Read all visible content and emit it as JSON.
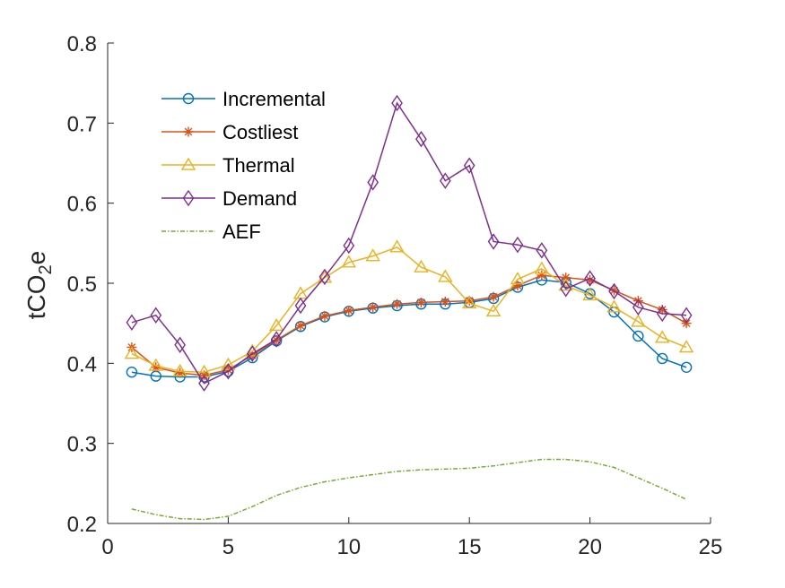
{
  "chart_data": {
    "type": "line",
    "ylabel": "tCO",
    "ylabel_sub": "2",
    "ylabel_tail": "e",
    "xlim": [
      0,
      25
    ],
    "ylim": [
      0.2,
      0.8
    ],
    "xticks": [
      "0",
      "5",
      "10",
      "15",
      "20",
      "25"
    ],
    "yticks": [
      "0.2",
      "0.3",
      "0.4",
      "0.5",
      "0.6",
      "0.7",
      "0.8"
    ],
    "grid": false,
    "legend": "top-left",
    "x": [
      1,
      2,
      3,
      4,
      5,
      6,
      7,
      8,
      9,
      10,
      11,
      12,
      13,
      14,
      15,
      16,
      17,
      18,
      19,
      20,
      21,
      22,
      23,
      24
    ],
    "series": [
      {
        "name": "Incremental",
        "color": "#0072BD",
        "marker": "circle",
        "dash": "solid",
        "values": [
          0.389,
          0.384,
          0.383,
          0.383,
          0.39,
          0.407,
          0.428,
          0.446,
          0.458,
          0.465,
          0.469,
          0.472,
          0.474,
          0.474,
          0.476,
          0.481,
          0.495,
          0.504,
          0.501,
          0.487,
          0.464,
          0.434,
          0.406,
          0.395
        ]
      },
      {
        "name": "Costliest",
        "color": "#D95319",
        "marker": "asterisk",
        "dash": "solid",
        "values": [
          0.42,
          0.395,
          0.388,
          0.385,
          0.392,
          0.41,
          0.429,
          0.447,
          0.459,
          0.466,
          0.47,
          0.474,
          0.476,
          0.477,
          0.478,
          0.483,
          0.497,
          0.51,
          0.507,
          0.504,
          0.491,
          0.478,
          0.467,
          0.45
        ]
      },
      {
        "name": "Thermal",
        "color": "#EDB120",
        "marker": "triangle",
        "dash": "solid",
        "values": [
          0.412,
          0.397,
          0.39,
          0.389,
          0.398,
          0.415,
          0.447,
          0.487,
          0.507,
          0.526,
          0.534,
          0.545,
          0.52,
          0.508,
          0.475,
          0.465,
          0.505,
          0.518,
          0.497,
          0.485,
          0.47,
          0.452,
          0.432,
          0.42
        ]
      },
      {
        "name": "Demand",
        "color": "#7E2F8E",
        "marker": "diamond",
        "dash": "solid",
        "values": [
          0.451,
          0.46,
          0.423,
          0.375,
          0.39,
          0.412,
          0.43,
          0.472,
          0.508,
          0.547,
          0.626,
          0.725,
          0.68,
          0.628,
          0.647,
          0.552,
          0.548,
          0.541,
          0.493,
          0.506,
          0.49,
          0.47,
          0.462,
          0.46
        ]
      },
      {
        "name": "AEF",
        "color": "#77AC30",
        "marker": "none",
        "dash": "dashed",
        "values": [
          0.218,
          0.211,
          0.206,
          0.205,
          0.209,
          0.221,
          0.235,
          0.245,
          0.252,
          0.257,
          0.261,
          0.265,
          0.267,
          0.268,
          0.269,
          0.272,
          0.276,
          0.28,
          0.28,
          0.277,
          0.27,
          0.257,
          0.244,
          0.23
        ]
      }
    ]
  }
}
